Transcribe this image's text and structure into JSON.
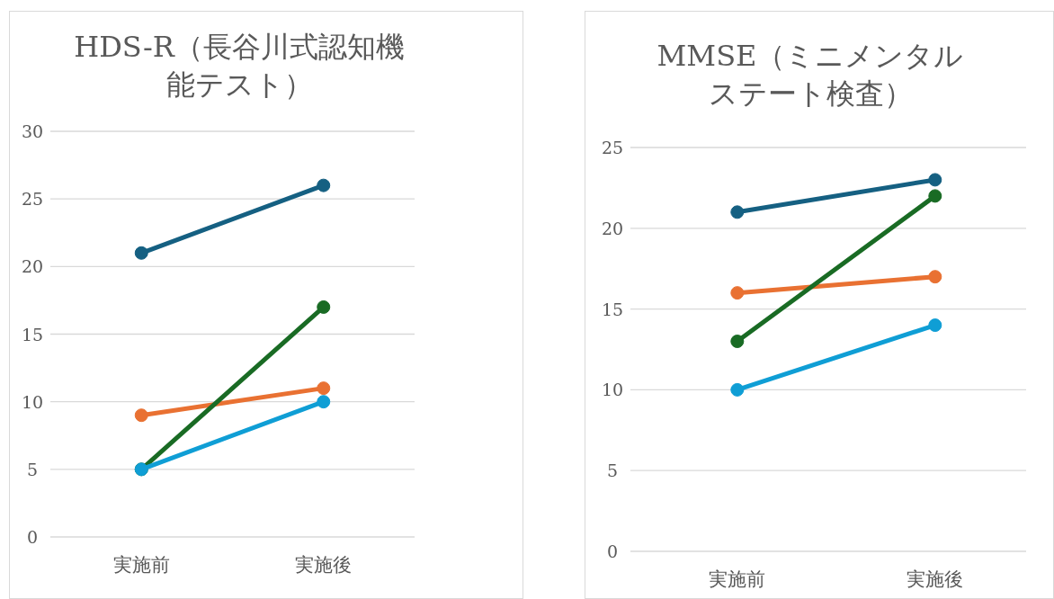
{
  "chart_data": [
    {
      "type": "line",
      "title": "HDS-R（長谷川式認知機能テスト）",
      "categories": [
        "実施前",
        "実施後"
      ],
      "ylim": [
        0,
        30
      ],
      "yticks": [
        0,
        5,
        10,
        15,
        20,
        25,
        30
      ],
      "grid": "y",
      "marker": "circle",
      "series": [
        {
          "color": "#156082",
          "values": [
            21,
            26
          ]
        },
        {
          "color": "#e97132",
          "values": [
            9,
            11
          ]
        },
        {
          "color": "#196b24",
          "values": [
            5,
            17
          ]
        },
        {
          "color": "#0f9ed5",
          "values": [
            5,
            10
          ]
        }
      ]
    },
    {
      "type": "line",
      "title": "MMSE（ミニメンタルステート検査）",
      "categories": [
        "実施前",
        "実施後"
      ],
      "ylim": [
        0,
        25
      ],
      "yticks": [
        0,
        5,
        10,
        15,
        20,
        25
      ],
      "grid": "y",
      "marker": "circle",
      "series": [
        {
          "color": "#156082",
          "values": [
            21,
            23
          ]
        },
        {
          "color": "#e97132",
          "values": [
            16,
            17
          ]
        },
        {
          "color": "#196b24",
          "values": [
            13,
            22
          ]
        },
        {
          "color": "#0f9ed5",
          "values": [
            10,
            14
          ]
        }
      ]
    }
  ]
}
